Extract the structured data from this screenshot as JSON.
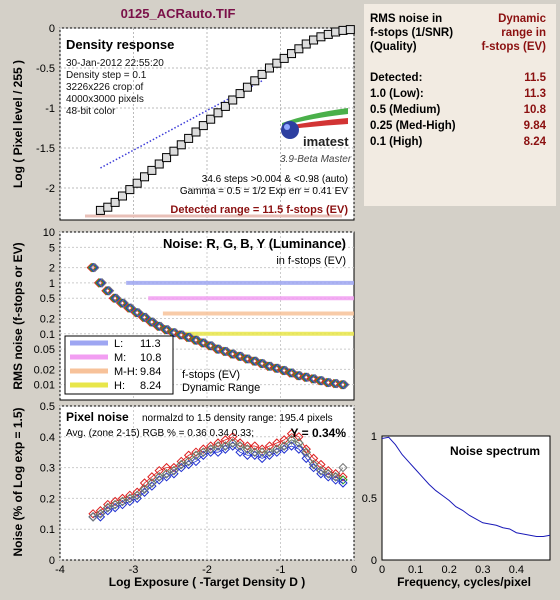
{
  "window_title": "0125_ACRauto.TIF",
  "density_panel": {
    "title": "Density response",
    "info_lines": [
      "30-Jan-2012 22:55:20",
      "Density step = 0.1",
      "3226x226 crop of",
      "4000x3000 pixels",
      "48-bit color"
    ],
    "logo_text": "imatest",
    "version_text": "3.9-Beta  Master",
    "stats_lines": [
      "34.6 steps >0.004 & <0.98 (auto)",
      "Gamma = 0.5 = 1/2  Exp err = 0.41 EV"
    ],
    "detected_range": "Detected range = 11.5 f-stops (EV)",
    "ylabel": "Log ( Pixel level / 255 )"
  },
  "noise_panel": {
    "title": "Noise: R, G, B, Y (Luminance)",
    "subtitle": "in f-stops (EV)",
    "ylabel": "RMS noise (f-stops or EV)",
    "legend_items": [
      {
        "label": "L:",
        "value": "11.3",
        "color": "#9ea6f2"
      },
      {
        "label": "M:",
        "value": "10.8",
        "color": "#f29ef2"
      },
      {
        "label": "M-H:",
        "value": "9.84",
        "color": "#f7c29a"
      },
      {
        "label": "H:",
        "value": "8.24",
        "color": "#e8e64a"
      }
    ],
    "dr_caption_1": "f-stops (EV)",
    "dr_caption_2": "Dynamic Range"
  },
  "pixel_panel": {
    "title": "Pixel noise",
    "norm_text": "normalzd to 1.5 density range: 195.4 pixels",
    "avg_text": "Avg. (zone 2-15) RGB % = 0.36  0.34  0.33;",
    "y_text": "Y = 0.34%",
    "ylabel": "Noise (% of Log exp = 1.5)",
    "xlabel": "Log Exposure ( -Target Density D )"
  },
  "spectrum_panel": {
    "title": "Noise spectrum",
    "xlabel": "Frequency, cycles/pixel"
  },
  "summary": {
    "hdr_left": [
      "RMS noise in",
      "f-stops (1/SNR)",
      "(Quality)"
    ],
    "hdr_right": [
      "Dynamic",
      "range in",
      "f-stops (EV)"
    ],
    "rows": [
      {
        "label": "Detected:",
        "value": "11.5"
      },
      {
        "label": "1.0   (Low):",
        "value": "11.3"
      },
      {
        "label": "0.5   (Medium)",
        "value": "10.8"
      },
      {
        "label": "0.25 (Med-High)",
        "value": "9.84"
      },
      {
        "label": "0.1   (High)",
        "value": "8.24"
      }
    ]
  },
  "chart_data": [
    {
      "type": "line",
      "title": "Density response",
      "xlabel": "",
      "ylabel": "Log ( Pixel level / 255 )",
      "xlim": [
        -4,
        0
      ],
      "ylim": [
        -2.4,
        0
      ],
      "x_ticks": [
        -4,
        -3,
        -2,
        -1,
        0
      ],
      "y_ticks": [
        "0",
        "-0.5",
        "-1",
        "-1.5",
        "-2"
      ],
      "series": [
        {
          "values_x": [
            -3.45,
            -3.35,
            -3.25,
            -3.15,
            -3.05,
            -2.95,
            -2.85,
            -2.75,
            -2.65,
            -2.55,
            -2.45,
            -2.35,
            -2.25,
            -2.15,
            -2.05,
            -1.95,
            -1.85,
            -1.75,
            -1.65,
            -1.55,
            -1.45,
            -1.35,
            -1.25,
            -1.15,
            -1.05,
            -0.95,
            -0.85,
            -0.75,
            -0.65,
            -0.55,
            -0.45,
            -0.35,
            -0.25,
            -0.15,
            -0.05
          ],
          "values_y": [
            -2.28,
            -2.24,
            -2.18,
            -2.1,
            -2.02,
            -1.94,
            -1.86,
            -1.78,
            -1.7,
            -1.62,
            -1.54,
            -1.46,
            -1.38,
            -1.3,
            -1.22,
            -1.14,
            -1.06,
            -0.98,
            -0.9,
            -0.82,
            -0.74,
            -0.66,
            -0.58,
            -0.5,
            -0.44,
            -0.38,
            -0.32,
            -0.26,
            -0.2,
            -0.15,
            -0.11,
            -0.08,
            -0.05,
            -0.03,
            -0.02
          ]
        },
        {
          "style": "dotted",
          "values_x": [
            -3.45,
            -1.25
          ],
          "values_y": [
            -1.75,
            -0.66
          ]
        }
      ]
    },
    {
      "type": "line",
      "title": "Noise: R, G, B, Y (Luminance)",
      "ylabel": "RMS noise (f-stops or EV)",
      "log_y": true,
      "xlim": [
        -4,
        0
      ],
      "ylim": [
        0.005,
        10
      ],
      "y_ticks": [
        "10",
        "5",
        "2",
        "1",
        "0.5",
        "0.2",
        "0.1",
        "0.05",
        "0.02",
        "0.01"
      ],
      "dr_levels": [
        1.0,
        0.5,
        0.25,
        0.1
      ],
      "series": [
        {
          "values_x": [
            -3.55,
            -3.45,
            -3.35,
            -3.25,
            -3.15,
            -3.05,
            -2.95,
            -2.85,
            -2.75,
            -2.65,
            -2.55,
            -2.45,
            -2.35,
            -2.25,
            -2.15,
            -2.05,
            -1.95,
            -1.85,
            -1.75,
            -1.65,
            -1.55,
            -1.45,
            -1.35,
            -1.25,
            -1.15,
            -1.05,
            -0.95,
            -0.85,
            -0.75,
            -0.65,
            -0.55,
            -0.45,
            -0.35,
            -0.25,
            -0.15
          ],
          "values_y": [
            2.0,
            1.0,
            0.7,
            0.5,
            0.4,
            0.32,
            0.26,
            0.21,
            0.17,
            0.14,
            0.12,
            0.105,
            0.095,
            0.085,
            0.075,
            0.066,
            0.058,
            0.05,
            0.045,
            0.04,
            0.036,
            0.032,
            0.029,
            0.026,
            0.023,
            0.021,
            0.019,
            0.017,
            0.015,
            0.014,
            0.013,
            0.012,
            0.011,
            0.0105,
            0.01
          ]
        }
      ]
    },
    {
      "type": "line",
      "title": "Pixel noise",
      "xlabel": "Log Exposure ( -Target Density D )",
      "ylabel": "Noise (% of Log exp = 1.5)",
      "xlim": [
        -4,
        0
      ],
      "ylim": [
        0,
        0.5
      ],
      "x_ticks": [
        -4,
        -3,
        -2,
        -1,
        0
      ],
      "y_ticks": [
        0,
        0.1,
        0.2,
        0.3,
        0.4,
        0.5
      ],
      "series": [
        {
          "name": "R",
          "values_x": [
            -3.55,
            -3.45,
            -3.35,
            -3.25,
            -3.15,
            -3.05,
            -2.95,
            -2.85,
            -2.75,
            -2.65,
            -2.55,
            -2.45,
            -2.35,
            -2.25,
            -2.15,
            -2.05,
            -1.95,
            -1.85,
            -1.75,
            -1.65,
            -1.55,
            -1.45,
            -1.35,
            -1.25,
            -1.15,
            -1.05,
            -0.95,
            -0.85,
            -0.75,
            -0.65,
            -0.55,
            -0.45,
            -0.35,
            -0.25,
            -0.15
          ],
          "values_y": [
            0.15,
            0.16,
            0.18,
            0.19,
            0.2,
            0.21,
            0.22,
            0.25,
            0.27,
            0.29,
            0.3,
            0.3,
            0.32,
            0.34,
            0.35,
            0.36,
            0.37,
            0.38,
            0.39,
            0.4,
            0.38,
            0.37,
            0.37,
            0.36,
            0.37,
            0.38,
            0.39,
            0.41,
            0.4,
            0.36,
            0.33,
            0.31,
            0.29,
            0.28,
            0.27
          ]
        },
        {
          "name": "G",
          "values_x": [
            -3.55,
            -3.45,
            -3.35,
            -3.25,
            -3.15,
            -3.05,
            -2.95,
            -2.85,
            -2.75,
            -2.65,
            -2.55,
            -2.45,
            -2.35,
            -2.25,
            -2.15,
            -2.05,
            -1.95,
            -1.85,
            -1.75,
            -1.65,
            -1.55,
            -1.45,
            -1.35,
            -1.25,
            -1.15,
            -1.05,
            -0.95,
            -0.85,
            -0.75,
            -0.65,
            -0.55,
            -0.45,
            -0.35,
            -0.25,
            -0.15
          ],
          "values_y": [
            0.14,
            0.15,
            0.17,
            0.18,
            0.19,
            0.2,
            0.21,
            0.23,
            0.25,
            0.27,
            0.28,
            0.29,
            0.31,
            0.32,
            0.34,
            0.35,
            0.36,
            0.37,
            0.37,
            0.38,
            0.37,
            0.36,
            0.35,
            0.35,
            0.35,
            0.36,
            0.37,
            0.39,
            0.38,
            0.35,
            0.31,
            0.29,
            0.28,
            0.27,
            0.26
          ]
        },
        {
          "name": "B",
          "values_x": [
            -3.55,
            -3.45,
            -3.35,
            -3.25,
            -3.15,
            -3.05,
            -2.95,
            -2.85,
            -2.75,
            -2.65,
            -2.55,
            -2.45,
            -2.35,
            -2.25,
            -2.15,
            -2.05,
            -1.95,
            -1.85,
            -1.75,
            -1.65,
            -1.55,
            -1.45,
            -1.35,
            -1.25,
            -1.15,
            -1.05,
            -0.95,
            -0.85,
            -0.75,
            -0.65,
            -0.55,
            -0.45,
            -0.35,
            -0.25,
            -0.15
          ],
          "values_y": [
            0.14,
            0.14,
            0.16,
            0.17,
            0.18,
            0.19,
            0.2,
            0.22,
            0.24,
            0.26,
            0.27,
            0.28,
            0.3,
            0.31,
            0.32,
            0.34,
            0.35,
            0.35,
            0.36,
            0.37,
            0.35,
            0.34,
            0.34,
            0.33,
            0.34,
            0.35,
            0.36,
            0.37,
            0.36,
            0.33,
            0.3,
            0.28,
            0.27,
            0.26,
            0.25
          ]
        },
        {
          "name": "Y",
          "values_x": [
            -3.55,
            -3.45,
            -3.35,
            -3.25,
            -3.15,
            -3.05,
            -2.95,
            -2.85,
            -2.75,
            -2.65,
            -2.55,
            -2.45,
            -2.35,
            -2.25,
            -2.15,
            -2.05,
            -1.95,
            -1.85,
            -1.75,
            -1.65,
            -1.55,
            -1.45,
            -1.35,
            -1.25,
            -1.15,
            -1.05,
            -0.95,
            -0.85,
            -0.75,
            -0.65,
            -0.55,
            -0.45,
            -0.35,
            -0.25,
            -0.15
          ],
          "values_y": [
            0.14,
            0.15,
            0.17,
            0.18,
            0.19,
            0.2,
            0.21,
            0.23,
            0.25,
            0.27,
            0.28,
            0.29,
            0.31,
            0.32,
            0.34,
            0.35,
            0.36,
            0.37,
            0.37,
            0.38,
            0.37,
            0.36,
            0.35,
            0.35,
            0.35,
            0.36,
            0.37,
            0.39,
            0.38,
            0.35,
            0.31,
            0.29,
            0.28,
            0.27,
            0.3
          ]
        }
      ]
    },
    {
      "type": "line",
      "title": "Noise spectrum",
      "xlabel": "Frequency, cycles/pixel",
      "xlim": [
        0,
        0.5
      ],
      "ylim": [
        0,
        1
      ],
      "x_ticks": [
        0,
        0.1,
        0.2,
        0.3,
        0.4
      ],
      "y_ticks": [
        0,
        0.5,
        1
      ],
      "series": [
        {
          "values_x": [
            0,
            0.02,
            0.04,
            0.06,
            0.08,
            0.1,
            0.12,
            0.14,
            0.16,
            0.18,
            0.2,
            0.22,
            0.24,
            0.26,
            0.28,
            0.3,
            0.32,
            0.34,
            0.36,
            0.38,
            0.4,
            0.42,
            0.44,
            0.46,
            0.48,
            0.5
          ],
          "values_y": [
            0.98,
            0.99,
            0.93,
            0.85,
            0.79,
            0.73,
            0.67,
            0.61,
            0.56,
            0.52,
            0.48,
            0.43,
            0.4,
            0.36,
            0.33,
            0.3,
            0.29,
            0.28,
            0.26,
            0.25,
            0.22,
            0.21,
            0.2,
            0.19,
            0.19,
            0.2
          ]
        }
      ]
    }
  ]
}
